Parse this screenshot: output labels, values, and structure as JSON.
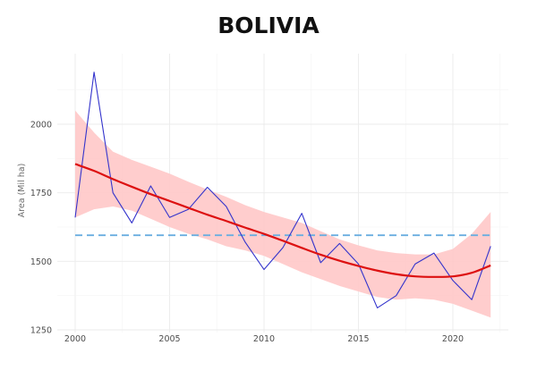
{
  "chart_data": {
    "type": "line",
    "title": "BOLIVIA",
    "xlabel": "",
    "ylabel": "Area (Mil ha)",
    "xlim": [
      1999,
      2023
    ],
    "ylim": [
      1250,
      2230
    ],
    "x_ticks": [
      2000,
      2005,
      2010,
      2015,
      2020
    ],
    "y_ticks": [
      1250,
      1500,
      1750,
      2000
    ],
    "grid": true,
    "legend": "none",
    "x": [
      2000,
      2001,
      2002,
      2003,
      2004,
      2005,
      2006,
      2007,
      2008,
      2009,
      2010,
      2011,
      2012,
      2013,
      2014,
      2015,
      2016,
      2017,
      2018,
      2019,
      2020,
      2021,
      2022
    ],
    "series": [
      {
        "role": "observed",
        "color": "#3333cc",
        "values": [
          1660,
          2190,
          1750,
          1640,
          1775,
          1660,
          1690,
          1770,
          1700,
          1570,
          1470,
          1550,
          1675,
          1495,
          1565,
          1490,
          1330,
          1375,
          1490,
          1530,
          1430,
          1360,
          1555
        ]
      },
      {
        "role": "smoothed-trend",
        "color": "#dd1111",
        "values": [
          1855,
          1830,
          1800,
          1772,
          1745,
          1720,
          1695,
          1670,
          1647,
          1623,
          1600,
          1575,
          1549,
          1524,
          1502,
          1483,
          1466,
          1453,
          1445,
          1443,
          1445,
          1458,
          1485
        ]
      },
      {
        "role": "confidence-band",
        "color": "#ffc8c8",
        "upper": [
          2050,
          1970,
          1900,
          1870,
          1845,
          1820,
          1790,
          1762,
          1735,
          1705,
          1680,
          1660,
          1640,
          1610,
          1580,
          1558,
          1540,
          1530,
          1525,
          1525,
          1545,
          1600,
          1680
        ],
        "lower": [
          1660,
          1690,
          1700,
          1685,
          1655,
          1625,
          1600,
          1580,
          1555,
          1540,
          1520,
          1490,
          1460,
          1435,
          1410,
          1390,
          1370,
          1360,
          1365,
          1360,
          1345,
          1320,
          1295
        ]
      },
      {
        "role": "mean-reference",
        "color": "#6aaee0",
        "value": 1595
      }
    ]
  }
}
